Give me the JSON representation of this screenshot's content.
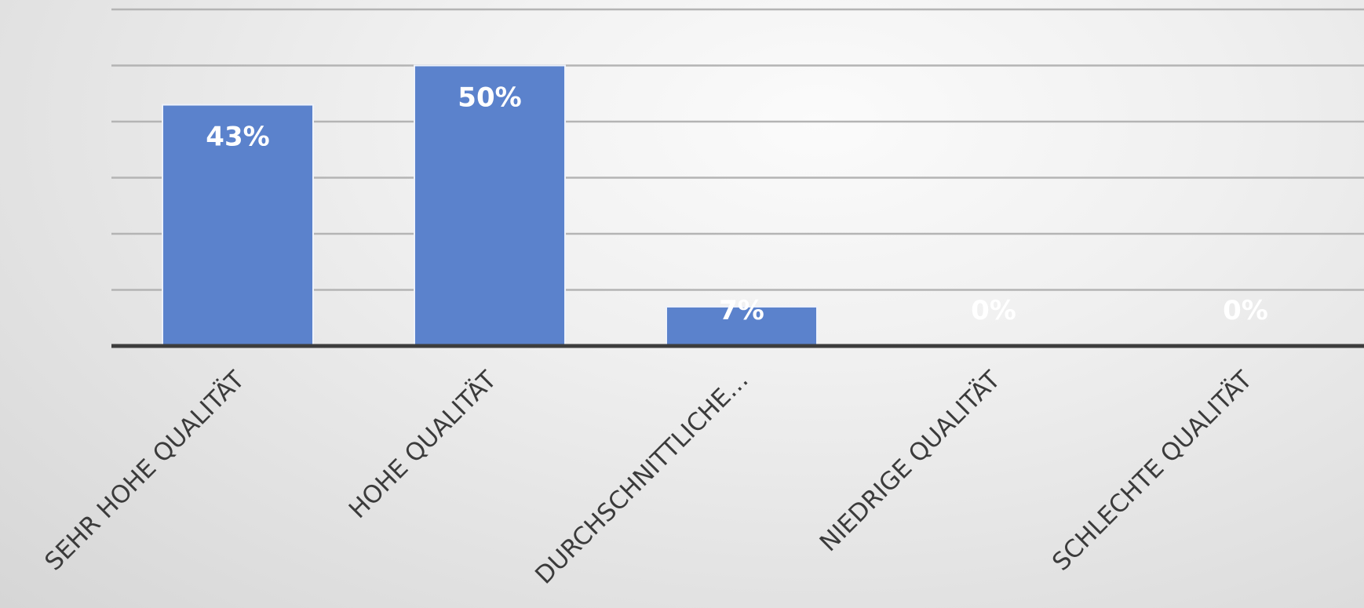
{
  "chart_data": {
    "type": "bar",
    "categories": [
      "SEHR HOHE QUALITÄT",
      "HOHE QUALITÄT",
      "DURCHSCHNITTLICHE…",
      "NIEDRIGE QUALITÄT",
      "SCHLECHTE QUALITÄT"
    ],
    "values": [
      43,
      50,
      7,
      0,
      0
    ],
    "data_labels": [
      "43%",
      "50%",
      "7%",
      "0%",
      "0%"
    ],
    "ylim": [
      0,
      60
    ],
    "y_gridline_step": 10,
    "grid": true,
    "legend": "none",
    "bar_color": "#5b82cc"
  }
}
